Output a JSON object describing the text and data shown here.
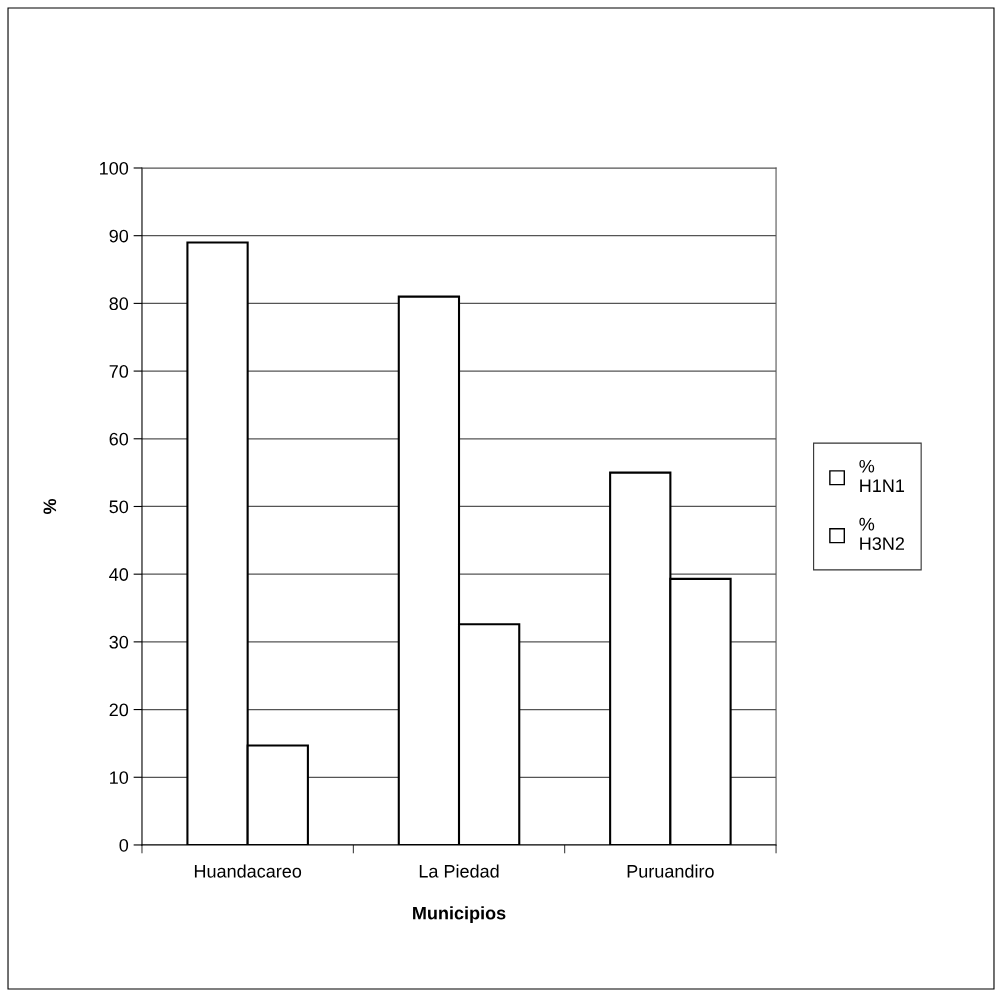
{
  "chart_data": {
    "type": "bar",
    "xlabel": "Municipios",
    "ylabel": "%",
    "categories": [
      "Huandacareo",
      "La Piedad",
      "Puruandiro"
    ],
    "series": [
      {
        "name": "% H1N1",
        "color": "#ffffff",
        "values": [
          89,
          81,
          55
        ]
      },
      {
        "name": "% H3N2",
        "color": "#ffffff",
        "values": [
          14.7,
          32.6,
          39.3
        ]
      }
    ],
    "ylim": [
      0,
      100
    ],
    "yticks": [
      0,
      10,
      20,
      30,
      40,
      50,
      60,
      70,
      80,
      90,
      100
    ],
    "grid": "y",
    "legend": "right"
  }
}
